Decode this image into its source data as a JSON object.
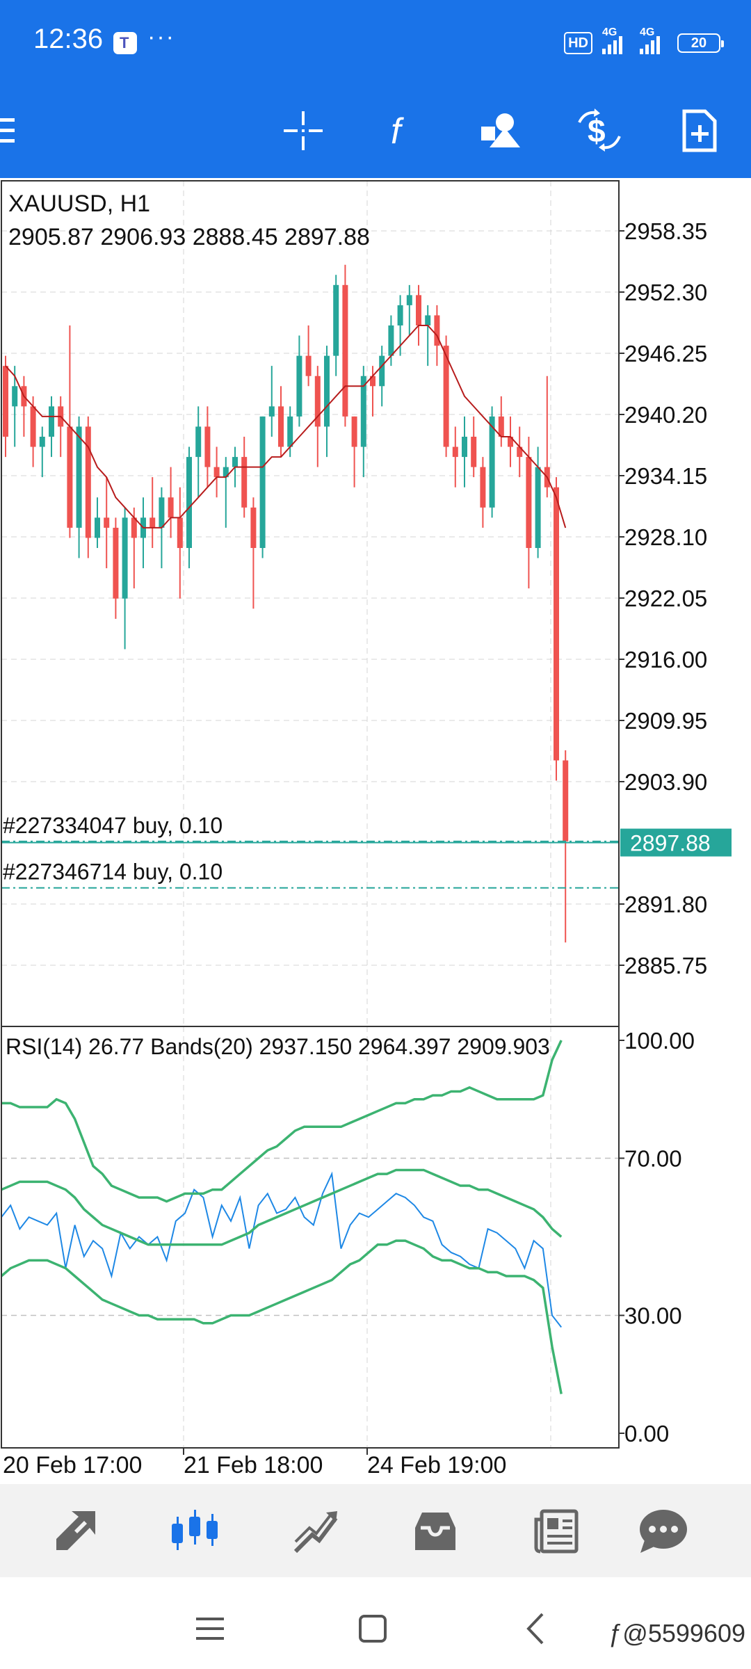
{
  "status_bar": {
    "time": "12:36",
    "dots": "···",
    "hd": "HD",
    "net1": "4G",
    "net2": "4G",
    "battery": "20"
  },
  "toolbar": {
    "icons": [
      "menu-icon",
      "crosshair-icon",
      "indicators-icon",
      "objects-icon",
      "trade-icon",
      "new-order-icon"
    ]
  },
  "main_chart": {
    "symbol": "XAUUSD, H1",
    "ohlc": "2905.87 2906.93 2888.45 2897.88",
    "price_levels": [
      "2958.35",
      "2952.30",
      "2946.25",
      "2940.20",
      "2934.15",
      "2928.10",
      "2922.05",
      "2916.00",
      "2909.95",
      "2903.90",
      "2891.80",
      "2885.75"
    ],
    "current_price": "2897.88",
    "orders": [
      {
        "label": "#227334047 buy, 0.10",
        "price": 2898.0
      },
      {
        "label": "#227346714 buy, 0.10",
        "price": 2893.4
      }
    ],
    "colors": {
      "bull": "#26a69a",
      "bear": "#ef5350",
      "ma": "#b71c1c",
      "price_tag": "#26a69a"
    }
  },
  "indicator_panel": {
    "title": "RSI(14) 26.77 Bands(20) 2937.150 2964.397 2909.903",
    "levels": [
      "100.00",
      "70.00",
      "30.00",
      "0.00"
    ],
    "colors": {
      "rsi": "#1e88e5",
      "bands": "#3cb371"
    }
  },
  "time_axis": [
    "20 Feb 17:00",
    "21 Feb 18:00",
    "24 Feb 19:00"
  ],
  "chart_data": [
    {
      "type": "candlestick",
      "title": "XAUUSD, H1",
      "ylim": [
        2881,
        2963
      ],
      "candles": [
        [
          2945,
          2946,
          2936,
          2938
        ],
        [
          2941,
          2945,
          2937,
          2943
        ],
        [
          2943,
          2944,
          2938,
          2941
        ],
        [
          2941,
          2942,
          2935,
          2937
        ],
        [
          2937,
          2939,
          2934,
          2938
        ],
        [
          2938,
          2942,
          2936,
          2941
        ],
        [
          2941,
          2942,
          2936,
          2939
        ],
        [
          2939,
          2949,
          2928,
          2929
        ],
        [
          2929,
          2940,
          2926,
          2939
        ],
        [
          2939,
          2940,
          2926,
          2928
        ],
        [
          2928,
          2932,
          2927,
          2930
        ],
        [
          2930,
          2934,
          2925,
          2929
        ],
        [
          2929,
          2930,
          2920,
          2922
        ],
        [
          2922,
          2931,
          2917,
          2930
        ],
        [
          2930,
          2931,
          2923,
          2928
        ],
        [
          2928,
          2932,
          2925,
          2930
        ],
        [
          2930,
          2934,
          2927,
          2929
        ],
        [
          2929,
          2933,
          2925,
          2932
        ],
        [
          2932,
          2935,
          2928,
          2930
        ],
        [
          2930,
          2933,
          2922,
          2927
        ],
        [
          2927,
          2937,
          2925,
          2936
        ],
        [
          2936,
          2941,
          2932,
          2939
        ],
        [
          2939,
          2941,
          2933,
          2935
        ],
        [
          2935,
          2937,
          2932,
          2934
        ],
        [
          2934,
          2936,
          2929,
          2935
        ],
        [
          2935,
          2937,
          2933,
          2936
        ],
        [
          2936,
          2938,
          2930,
          2931
        ],
        [
          2931,
          2932,
          2921,
          2927
        ],
        [
          2927,
          2940,
          2926,
          2940
        ],
        [
          2940,
          2945,
          2938,
          2941
        ],
        [
          2941,
          2943,
          2936,
          2937
        ],
        [
          2937,
          2941,
          2936,
          2940
        ],
        [
          2940,
          2948,
          2939,
          2946
        ],
        [
          2946,
          2949,
          2943,
          2944
        ],
        [
          2944,
          2945,
          2935,
          2939
        ],
        [
          2939,
          2947,
          2936,
          2946
        ],
        [
          2946,
          2954,
          2944,
          2953
        ],
        [
          2953,
          2955,
          2939,
          2940
        ],
        [
          2940,
          2940,
          2933,
          2937
        ],
        [
          2937,
          2945,
          2934,
          2944
        ],
        [
          2944,
          2945,
          2940,
          2943
        ],
        [
          2943,
          2947,
          2941,
          2946
        ],
        [
          2946,
          2950,
          2945,
          2949
        ],
        [
          2949,
          2952,
          2946,
          2951
        ],
        [
          2951,
          2953,
          2948,
          2952
        ],
        [
          2952,
          2953,
          2947,
          2949
        ],
        [
          2949,
          2951,
          2945,
          2950
        ],
        [
          2950,
          2951,
          2945,
          2947
        ],
        [
          2947,
          2948,
          2936,
          2937
        ],
        [
          2937,
          2939,
          2933,
          2936
        ],
        [
          2936,
          2940,
          2933,
          2938
        ],
        [
          2938,
          2940,
          2934,
          2935
        ],
        [
          2935,
          2936,
          2929,
          2931
        ],
        [
          2931,
          2941,
          2930,
          2940
        ],
        [
          2940,
          2942,
          2937,
          2938
        ],
        [
          2938,
          2940,
          2935,
          2937
        ],
        [
          2937,
          2939,
          2934,
          2936
        ],
        [
          2936,
          2938,
          2923,
          2927
        ],
        [
          2927,
          2937,
          2926,
          2935
        ],
        [
          2935,
          2944,
          2932,
          2933
        ],
        [
          2933,
          2934,
          2904,
          2906
        ],
        [
          2906,
          2907,
          2888,
          2898
        ]
      ],
      "ma": [
        2945,
        2944,
        2942,
        2941,
        2940,
        2940,
        2940,
        2939,
        2938,
        2937,
        2935,
        2934,
        2932,
        2931,
        2930,
        2929,
        2929,
        2929,
        2930,
        2930,
        2931,
        2932,
        2933,
        2934,
        2934,
        2935,
        2935,
        2935,
        2935,
        2936,
        2936,
        2937,
        2938,
        2939,
        2940,
        2941,
        2942,
        2943,
        2943,
        2943,
        2944,
        2945,
        2946,
        2947,
        2948,
        2949,
        2949,
        2948,
        2946,
        2944,
        2942,
        2941,
        2940,
        2939,
        2938,
        2938,
        2937,
        2936,
        2935,
        2934,
        2932,
        2929
      ],
      "orders": [
        2898.0,
        2893.4
      ],
      "current": 2897.88
    },
    {
      "type": "line",
      "title": "RSI(14) 26.77 Bands(20) 2937.150 2964.397 2909.903",
      "ylim": [
        0,
        100
      ],
      "series": [
        {
          "name": "RSI(14)",
          "values": [
            55,
            58,
            52,
            55,
            54,
            53,
            56,
            42,
            53,
            45,
            49,
            47,
            40,
            51,
            47,
            50,
            48,
            50,
            44,
            54,
            56,
            62,
            60,
            50,
            58,
            54,
            60,
            47,
            58,
            61,
            56,
            57,
            60,
            55,
            53,
            61,
            66,
            47,
            53,
            56,
            55,
            57,
            59,
            61,
            60,
            58,
            55,
            54,
            48,
            46,
            45,
            43,
            42,
            52,
            51,
            49,
            47,
            42,
            49,
            47,
            30,
            27
          ]
        },
        {
          "name": "Bands upper",
          "values": [
            84,
            84,
            83,
            83,
            83,
            83,
            85,
            84,
            80,
            74,
            68,
            66,
            63,
            62,
            61,
            60,
            60,
            60,
            59,
            60,
            61,
            61,
            61,
            62,
            62,
            64,
            66,
            68,
            70,
            72,
            73,
            75,
            77,
            78,
            78,
            78,
            78,
            78,
            79,
            80,
            81,
            82,
            83,
            84,
            84,
            85,
            85,
            86,
            86,
            87,
            87,
            88,
            87,
            86,
            85,
            85,
            85,
            85,
            85,
            86,
            95,
            100
          ]
        },
        {
          "name": "Bands middle",
          "values": [
            62,
            63,
            64,
            64,
            64,
            64,
            63,
            62,
            60,
            57,
            55,
            53,
            52,
            51,
            50,
            49,
            48,
            48,
            48,
            48,
            48,
            48,
            48,
            48,
            48,
            49,
            50,
            51,
            53,
            54,
            55,
            56,
            57,
            58,
            59,
            60,
            61,
            62,
            63,
            64,
            65,
            66,
            66,
            67,
            67,
            67,
            67,
            66,
            65,
            64,
            63,
            63,
            62,
            62,
            61,
            60,
            59,
            58,
            57,
            55,
            52,
            50
          ]
        },
        {
          "name": "Bands lower",
          "values": [
            40,
            42,
            43,
            44,
            44,
            44,
            43,
            42,
            40,
            38,
            36,
            34,
            33,
            32,
            31,
            30,
            30,
            29,
            29,
            29,
            29,
            29,
            28,
            28,
            29,
            30,
            30,
            30,
            31,
            32,
            33,
            34,
            35,
            36,
            37,
            38,
            39,
            41,
            43,
            44,
            46,
            48,
            48,
            49,
            49,
            48,
            47,
            45,
            44,
            44,
            43,
            42,
            42,
            41,
            41,
            40,
            40,
            40,
            39,
            37,
            22,
            10
          ]
        }
      ],
      "levels": [
        70,
        30
      ]
    }
  ]
}
